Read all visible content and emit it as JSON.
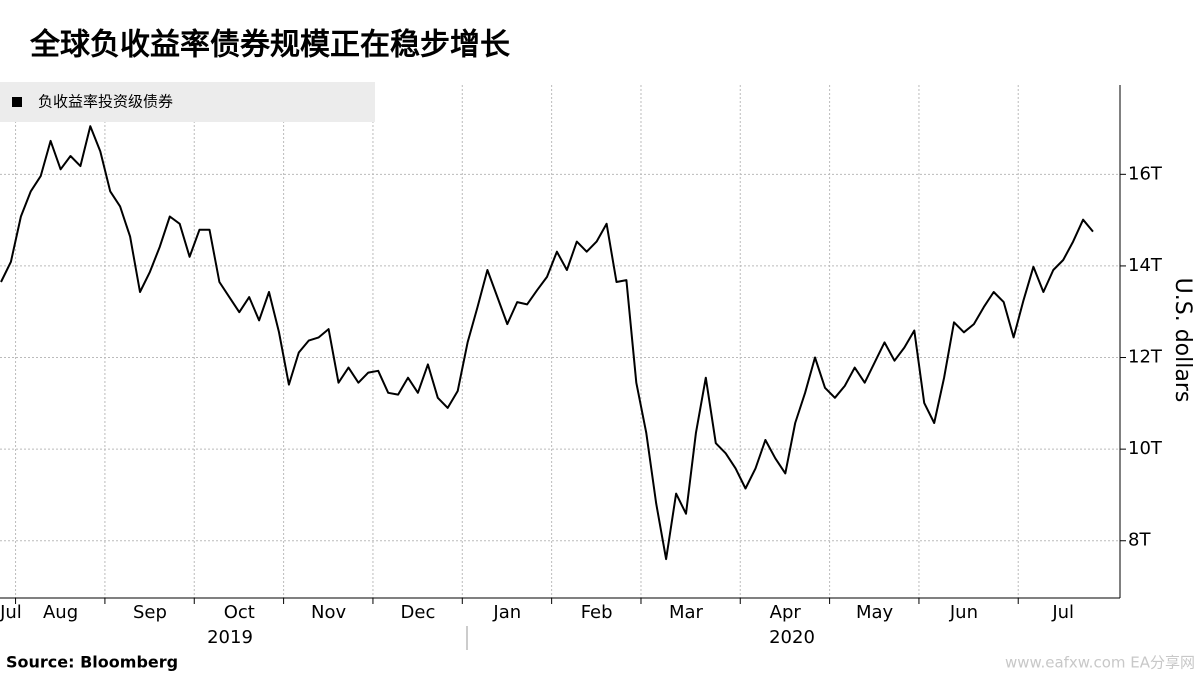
{
  "chart_data": {
    "type": "line",
    "title": "全球负收益率债券规模正在稳步增长",
    "y_axis_label": "U.S. dollars",
    "source": "Source:  Bloomberg",
    "watermark": "www.eafxw.com   EA分享网",
    "year_labels": [
      "2019",
      "2020"
    ],
    "categories": [
      null,
      "Jul",
      null,
      null,
      null,
      null,
      "Aug",
      null,
      null,
      null,
      null,
      null,
      null,
      null,
      null,
      "Sep",
      null,
      null,
      null,
      null,
      null,
      null,
      null,
      null,
      "Oct",
      null,
      null,
      null,
      null,
      null,
      null,
      null,
      null,
      "Nov",
      null,
      null,
      null,
      null,
      null,
      null,
      null,
      null,
      "Dec",
      null,
      null,
      null,
      null,
      null,
      null,
      null,
      null,
      "Jan",
      null,
      null,
      null,
      null,
      null,
      null,
      null,
      null,
      "Feb",
      null,
      null,
      null,
      null,
      null,
      null,
      null,
      null,
      "Mar",
      null,
      null,
      null,
      null,
      null,
      null,
      null,
      null,
      null,
      "Apr",
      null,
      null,
      null,
      null,
      null,
      null,
      null,
      null,
      "May",
      null,
      null,
      null,
      null,
      null,
      null,
      null,
      null,
      "Jun",
      null,
      null,
      null,
      null,
      null,
      null,
      null,
      null,
      null,
      "Jul",
      null,
      null,
      null
    ],
    "series": [
      {
        "name": "负收益率投资级债券",
        "color": "#000000",
        "values": [
          13.65,
          14.09,
          15.08,
          15.63,
          15.96,
          16.73,
          16.11,
          16.4,
          16.18,
          17.05,
          16.5,
          15.63,
          15.3,
          14.64,
          13.43,
          13.87,
          14.42,
          15.08,
          14.92,
          14.2,
          14.79,
          14.79,
          13.65,
          13.32,
          12.99,
          13.32,
          12.81,
          13.43,
          12.55,
          11.41,
          12.11,
          12.37,
          12.44,
          12.62,
          11.45,
          11.78,
          11.45,
          11.67,
          11.71,
          11.23,
          11.19,
          11.56,
          11.23,
          11.85,
          11.12,
          10.9,
          11.27,
          12.33,
          13.1,
          13.91,
          13.32,
          12.73,
          13.21,
          13.16,
          13.47,
          13.76,
          14.31,
          13.91,
          14.53,
          14.31,
          14.53,
          14.92,
          13.65,
          13.69,
          11.45,
          10.35,
          8.81,
          7.6,
          9.03,
          8.59,
          10.35,
          11.56,
          10.13,
          9.91,
          9.58,
          9.14,
          9.58,
          10.2,
          9.8,
          9.47,
          10.57,
          11.23,
          12.0,
          11.34,
          11.12,
          11.38,
          11.78,
          11.45,
          11.89,
          12.33,
          11.93,
          12.22,
          12.59,
          11.01,
          10.57,
          11.56,
          12.77,
          12.55,
          12.73,
          13.1,
          13.43,
          13.21,
          12.44,
          13.25,
          13.98,
          13.43,
          13.91,
          14.13,
          14.53,
          15.01,
          14.75
        ]
      }
    ],
    "ylim": [
      6.75,
      17.95
    ],
    "yticks": [
      {
        "value": 8,
        "label": "8T"
      },
      {
        "value": 10,
        "label": "10T"
      },
      {
        "value": 12,
        "label": "12T"
      },
      {
        "value": 14,
        "label": "14T"
      },
      {
        "value": 16,
        "label": "16T"
      }
    ],
    "grid": true,
    "legend": "top-left"
  }
}
